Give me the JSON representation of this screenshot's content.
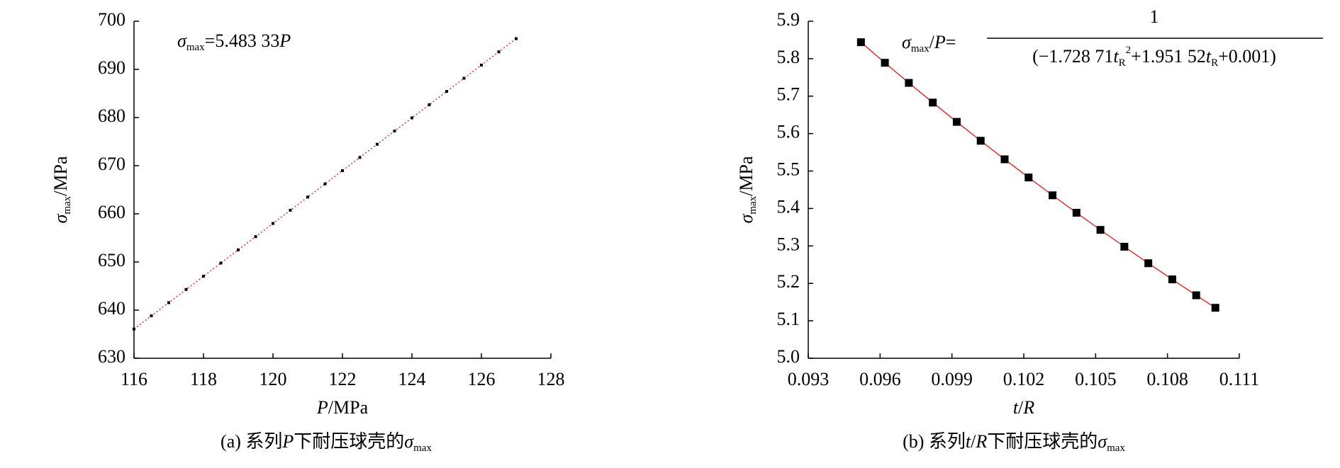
{
  "chart_data": [
    {
      "type": "scatter",
      "annotation": [
        "σ",
        "max",
        "=5.483 33",
        "P"
      ],
      "xlabel": [
        "P",
        "/MPa"
      ],
      "ylabel": [
        "σ",
        "max",
        "/MPa"
      ],
      "caption": [
        "(a) 系列",
        "P",
        "下耐压球壳的",
        "σ",
        "max"
      ],
      "x": [
        116,
        116.5,
        117,
        117.5,
        118,
        118.5,
        119,
        119.5,
        120,
        120.5,
        121,
        121.5,
        122,
        122.5,
        123,
        123.5,
        124,
        124.5,
        125,
        125.5,
        126,
        126.5,
        127
      ],
      "values": [
        636.07,
        638.81,
        641.55,
        644.29,
        647.03,
        649.77,
        652.52,
        655.26,
        658.0,
        660.74,
        663.48,
        666.22,
        668.97,
        671.71,
        674.45,
        677.19,
        679.93,
        682.67,
        685.42,
        688.16,
        690.9,
        693.64,
        696.38
      ],
      "color": "#000000",
      "line_color": "#e03030",
      "xlim": [
        116,
        128
      ],
      "xticks": [
        116,
        118,
        120,
        122,
        124,
        126,
        128
      ],
      "ylim": [
        630,
        700
      ],
      "yticks": [
        630,
        640,
        650,
        660,
        670,
        680,
        690,
        700
      ],
      "grid": false
    },
    {
      "type": "scatter",
      "annotation": [
        "σ",
        "max",
        "/",
        "P",
        "="
      ],
      "annotation_numerator": "1",
      "annotation_denominator": [
        "(−1.728 71",
        "t",
        "R",
        "2",
        "+1.951 52",
        "t",
        "R",
        "+0.001)"
      ],
      "xlabel": [
        "t",
        "/",
        "R"
      ],
      "ylabel": [
        "σ",
        "max",
        "/MPa"
      ],
      "caption": [
        "(b) 系列",
        "t",
        "/",
        "R",
        "下耐压球壳的",
        "σ",
        "max"
      ],
      "x": [
        0.0952,
        0.0962,
        0.0972,
        0.0982,
        0.0992,
        0.1002,
        0.1012,
        0.1022,
        0.1032,
        0.1042,
        0.1052,
        0.1062,
        0.1072,
        0.1082,
        0.1092,
        0.11
      ],
      "values": [
        5.844,
        5.7891,
        5.7354,
        5.6828,
        5.6313,
        5.5808,
        5.5313,
        5.4828,
        5.4352,
        5.3886,
        5.3428,
        5.2979,
        5.2538,
        5.2106,
        5.1682,
        5.1348
      ],
      "color": "#000000",
      "line_color": "#e03030",
      "xlim": [
        0.093,
        0.111
      ],
      "xticks": [
        0.093,
        0.096,
        0.099,
        0.102,
        0.105,
        0.108,
        0.111
      ],
      "ylim": [
        5.0,
        5.9
      ],
      "yticks": [
        {
          "value": 5.0,
          "label": "5.0"
        },
        5.1,
        5.2,
        5.3,
        5.4,
        5.5,
        5.6,
        5.7,
        5.8,
        5.9
      ],
      "grid": false
    }
  ]
}
